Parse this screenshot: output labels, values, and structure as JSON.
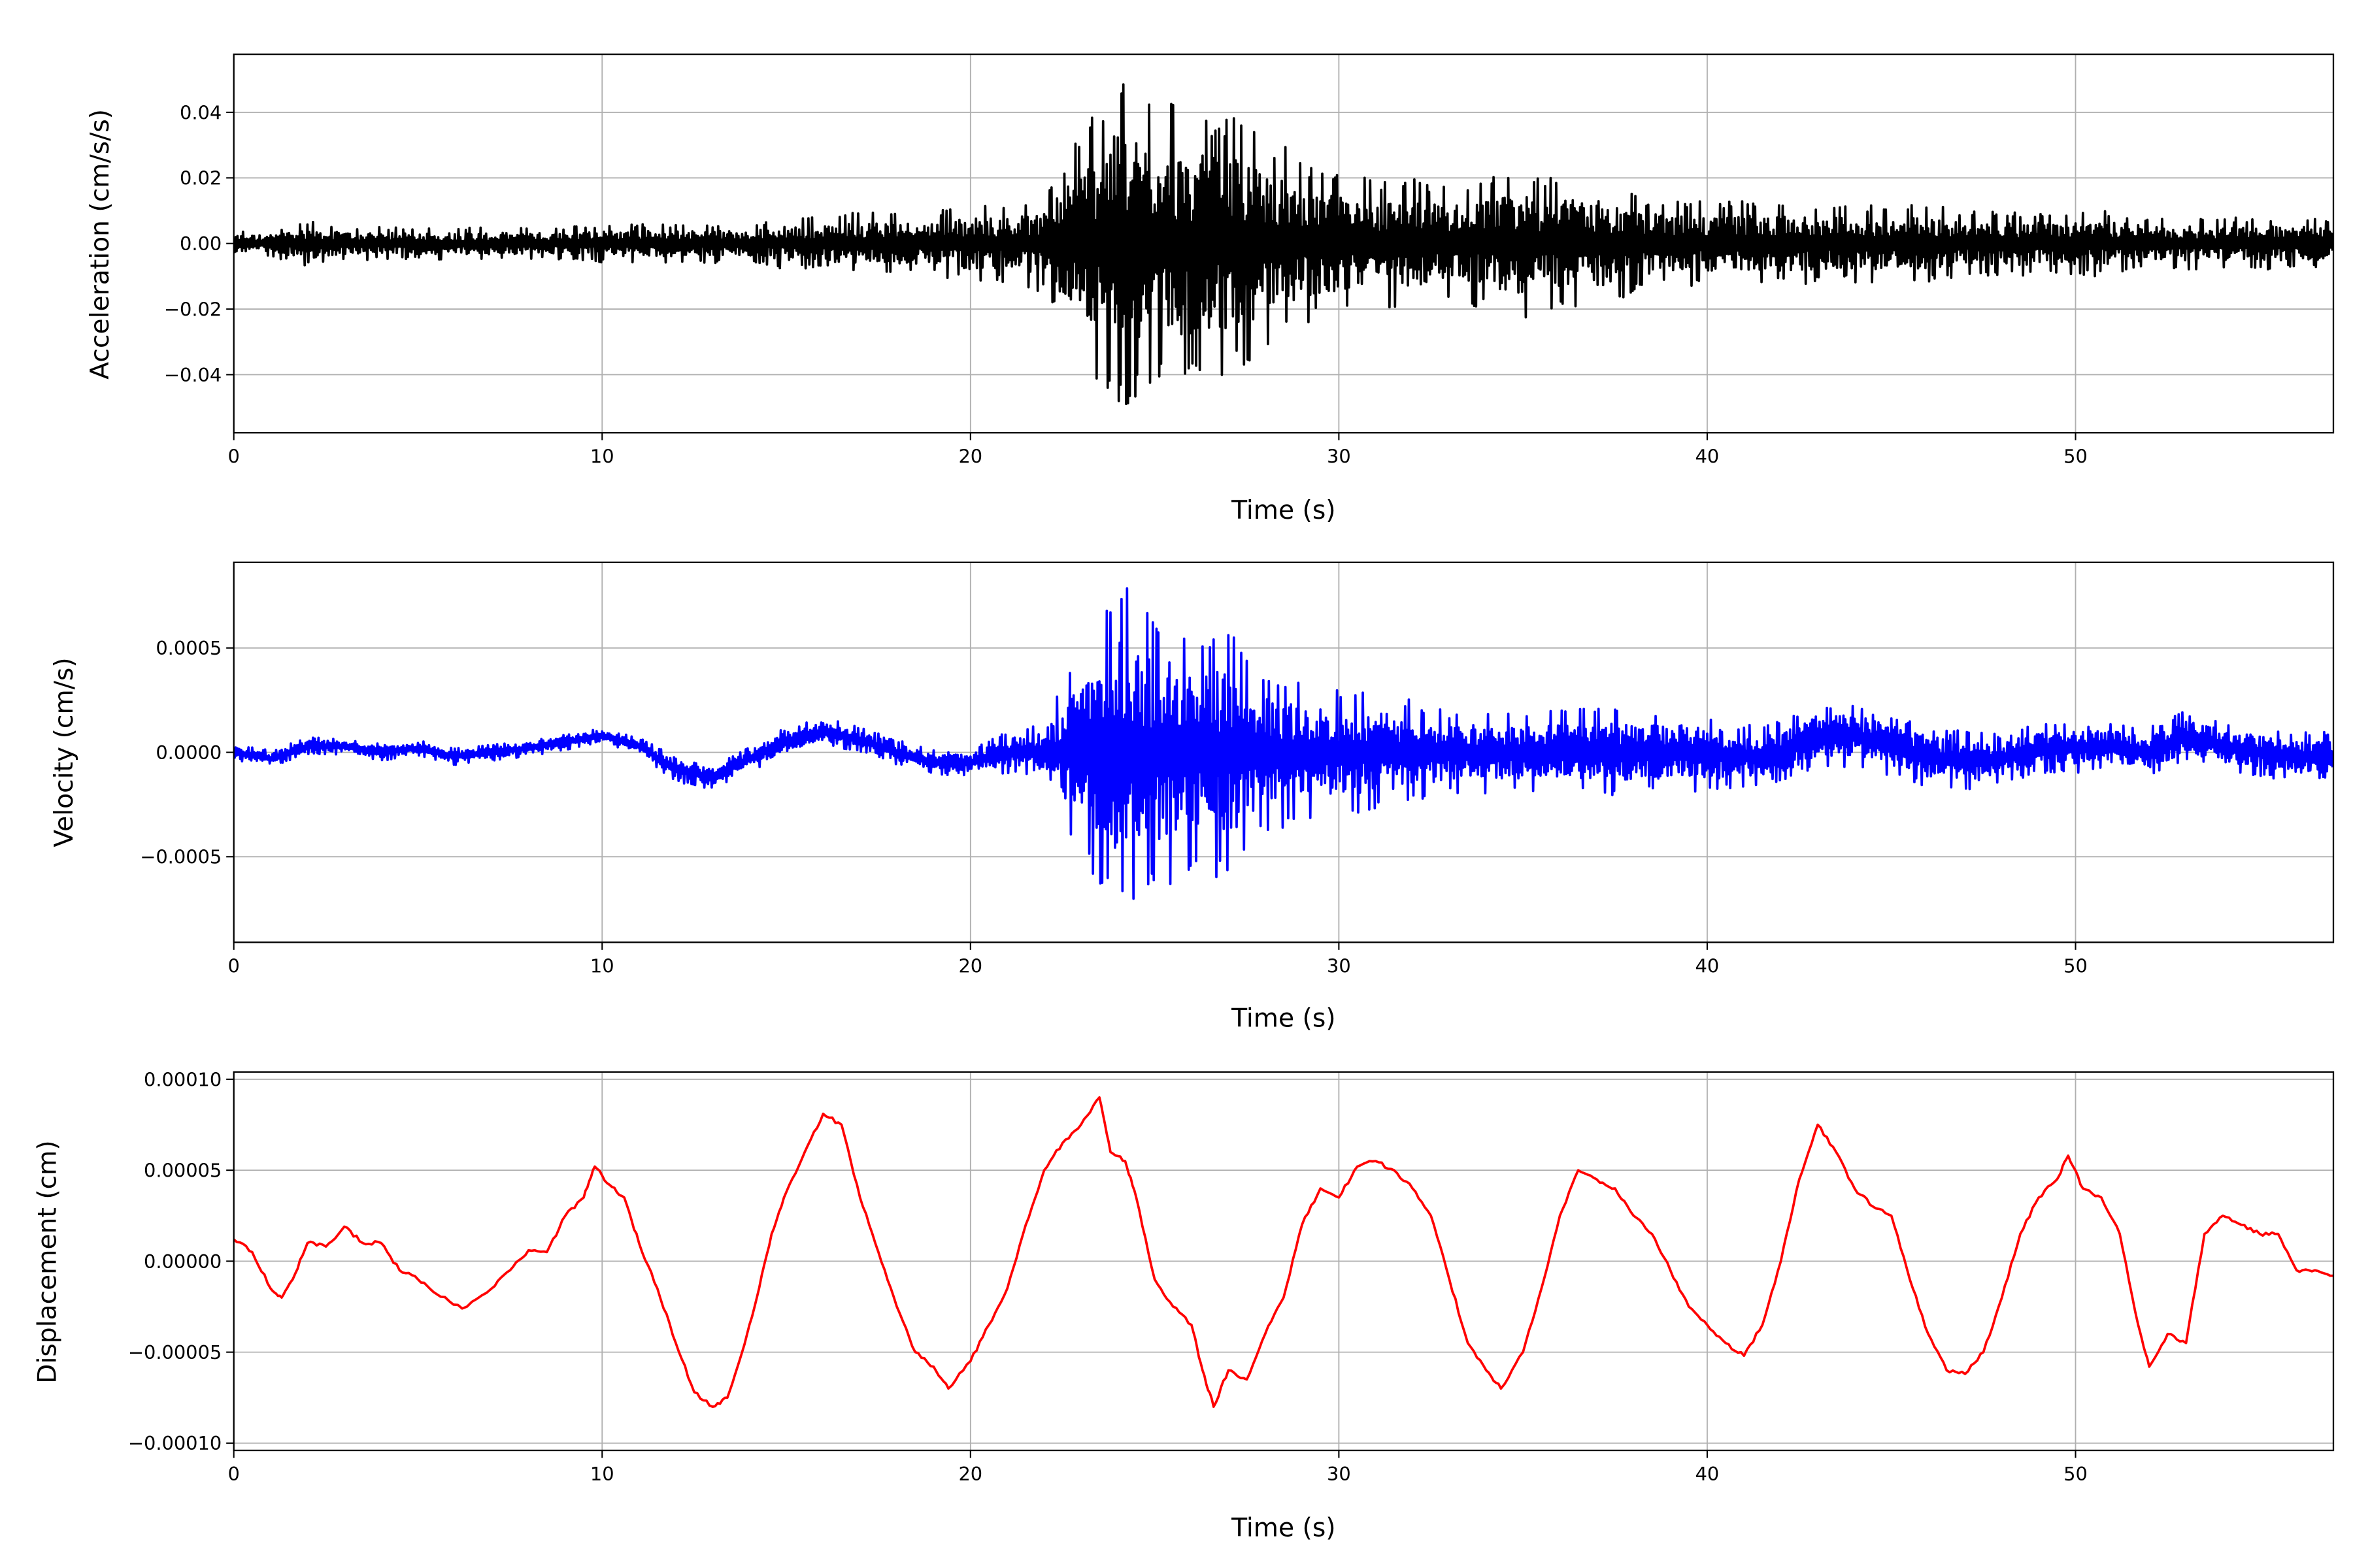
{
  "chart_data": [
    {
      "type": "line",
      "xlabel": "Time (s)",
      "ylabel": "Acceleration (cm/s/s)",
      "xlim": [
        0,
        57
      ],
      "ylim": [
        -0.0577,
        0.0577
      ],
      "xticks": [
        0,
        10,
        20,
        30,
        40,
        50
      ],
      "xtick_labels": [
        "0",
        "10",
        "20",
        "30",
        "40",
        "50"
      ],
      "yticks": [
        0.04,
        0.02,
        0.0,
        -0.02,
        -0.04
      ],
      "ytick_labels": [
        "0.04",
        "0.02",
        "0.00",
        "−0.02",
        "−0.04"
      ],
      "grid": true,
      "color": "#000000",
      "envelope": {
        "description_units": "peak absolute amplitude per 1 s bin starting at t (cm/s/s)",
        "t": [
          0,
          1,
          2,
          3,
          4,
          5,
          6,
          7,
          8,
          9,
          10,
          11,
          12,
          13,
          14,
          15,
          16,
          17,
          18,
          19,
          20,
          21,
          22,
          23,
          24,
          25,
          26,
          27,
          28,
          29,
          30,
          31,
          32,
          33,
          34,
          35,
          36,
          37,
          38,
          39,
          40,
          41,
          42,
          43,
          44,
          45,
          46,
          47,
          48,
          49,
          50,
          51,
          52,
          53,
          54,
          55,
          56
        ],
        "mean": [
          0,
          0,
          0,
          0,
          0,
          0,
          0,
          0,
          0,
          0,
          0,
          0,
          0,
          0,
          0,
          0,
          0,
          0,
          0,
          0,
          0,
          0,
          0,
          0,
          0,
          0,
          0,
          0,
          0,
          0,
          0,
          0,
          0,
          0,
          0,
          0,
          0,
          0,
          0,
          0,
          0,
          0,
          0,
          0,
          0,
          0,
          0,
          0,
          0,
          0,
          0,
          0,
          0,
          0,
          0,
          0,
          0
        ],
        "amplitude": [
          0.004,
          0.004,
          0.007,
          0.005,
          0.005,
          0.005,
          0.005,
          0.005,
          0.005,
          0.005,
          0.006,
          0.006,
          0.006,
          0.006,
          0.006,
          0.008,
          0.008,
          0.01,
          0.01,
          0.01,
          0.012,
          0.012,
          0.015,
          0.035,
          0.052,
          0.045,
          0.042,
          0.04,
          0.035,
          0.025,
          0.022,
          0.02,
          0.02,
          0.018,
          0.02,
          0.024,
          0.02,
          0.021,
          0.015,
          0.013,
          0.013,
          0.013,
          0.013,
          0.012,
          0.012,
          0.012,
          0.012,
          0.01,
          0.01,
          0.01,
          0.01,
          0.01,
          0.008,
          0.008,
          0.008,
          0.008,
          0.008
        ]
      }
    },
    {
      "type": "line",
      "xlabel": "Time (s)",
      "ylabel": "Velocity (cm/s)",
      "xlim": [
        0,
        57
      ],
      "ylim": [
        -0.00091,
        0.00091
      ],
      "xticks": [
        0,
        10,
        20,
        30,
        40,
        50
      ],
      "xtick_labels": [
        "0",
        "10",
        "20",
        "30",
        "40",
        "50"
      ],
      "yticks": [
        0.0005,
        0.0,
        -0.0005
      ],
      "ytick_labels": [
        "0.0005",
        "0.0000",
        "−0.0005"
      ],
      "grid": true,
      "color": "#0000ff",
      "envelope": {
        "description_units": "mean level and peak amplitude per 1 s bin starting at t (cm/s)",
        "t": [
          0,
          1,
          2,
          3,
          4,
          5,
          6,
          7,
          8,
          9,
          10,
          11,
          12,
          13,
          14,
          15,
          16,
          17,
          18,
          19,
          20,
          21,
          22,
          23,
          24,
          25,
          26,
          27,
          28,
          29,
          30,
          31,
          32,
          33,
          34,
          35,
          36,
          37,
          38,
          39,
          40,
          41,
          42,
          43,
          44,
          45,
          46,
          47,
          48,
          49,
          50,
          51,
          52,
          53,
          54,
          55,
          56
        ],
        "mean": [
          0,
          -3e-05,
          3e-05,
          3e-05,
          0,
          2e-05,
          -2e-05,
          0,
          2e-05,
          5e-05,
          8e-05,
          3e-05,
          -8e-05,
          -0.00012,
          -3e-05,
          5e-05,
          0.0001,
          6e-05,
          0,
          -5e-05,
          -5e-05,
          0,
          0,
          0,
          0,
          0,
          0,
          0,
          0,
          0,
          0,
          0,
          0,
          0,
          0,
          0,
          0,
          0,
          0,
          0,
          0,
          -2e-05,
          0,
          8e-05,
          8e-05,
          3e-05,
          -2e-05,
          -5e-05,
          -3e-05,
          2e-05,
          2e-05,
          3e-05,
          0,
          8e-05,
          3e-05,
          0,
          -2e-05
        ],
        "amplitude": [
          4e-05,
          4e-05,
          4e-05,
          4e-05,
          4e-05,
          4e-05,
          4e-05,
          4e-05,
          4e-05,
          4e-05,
          4e-05,
          4e-05,
          6e-05,
          6e-05,
          6e-05,
          7e-05,
          7e-05,
          6e-05,
          6e-05,
          6e-05,
          6e-05,
          0.0001,
          0.00015,
          0.0005,
          0.00082,
          0.0007,
          0.00062,
          0.0006,
          0.0004,
          0.00035,
          0.0003,
          0.0003,
          0.00025,
          0.0002,
          0.0002,
          0.0002,
          0.0002,
          0.00022,
          0.0002,
          0.0002,
          0.0002,
          0.00015,
          0.00015,
          0.00015,
          0.00015,
          0.00015,
          0.00015,
          0.00015,
          0.00012,
          0.00012,
          0.00012,
          0.00012,
          0.00012,
          0.00012,
          0.00012,
          0.00012,
          0.00012
        ]
      }
    },
    {
      "type": "line",
      "xlabel": "Time (s)",
      "ylabel": "Displacement (cm)",
      "xlim": [
        0,
        57
      ],
      "ylim": [
        -0.000104,
        0.000104
      ],
      "xticks": [
        0,
        10,
        20,
        30,
        40,
        50
      ],
      "xtick_labels": [
        "0",
        "10",
        "20",
        "30",
        "40",
        "50"
      ],
      "yticks": [
        0.0001,
        5e-05,
        0.0,
        -5e-05,
        -0.0001
      ],
      "ytick_labels": [
        "0.00010",
        "0.00005",
        "0.00000",
        "−0.00005",
        "−0.00010"
      ],
      "grid": true,
      "color": "#ff0000",
      "x": [
        0,
        0.5,
        1.0,
        1.3,
        1.6,
        2.0,
        2.5,
        3.0,
        3.5,
        4.0,
        4.5,
        5.0,
        5.5,
        6.2,
        7.0,
        7.5,
        8.0,
        8.5,
        9.0,
        9.5,
        9.8,
        10.2,
        10.6,
        11.0,
        11.5,
        12.0,
        12.5,
        13.0,
        13.4,
        13.8,
        14.2,
        14.6,
        15.0,
        15.5,
        16.0,
        16.5,
        17.0,
        17.5,
        18.0,
        18.5,
        19.0,
        19.4,
        20.0,
        20.5,
        21.0,
        21.5,
        22.0,
        22.5,
        23.0,
        23.5,
        23.8,
        24.2,
        24.5,
        25.0,
        25.5,
        26.0,
        26.3,
        26.6,
        27.0,
        27.5,
        28.0,
        28.5,
        29.0,
        29.5,
        30.0,
        30.5,
        31.0,
        31.5,
        32.0,
        32.5,
        33.0,
        33.5,
        34.0,
        34.4,
        35.0,
        35.5,
        36.0,
        36.5,
        37.0,
        37.5,
        38.0,
        38.5,
        39.0,
        39.5,
        40.0,
        40.5,
        41.0,
        41.5,
        42.0,
        42.5,
        43.0,
        43.5,
        44.0,
        44.5,
        45.0,
        45.5,
        46.0,
        46.5,
        47.0,
        47.5,
        48.0,
        48.5,
        49.0,
        49.5,
        49.8,
        50.2,
        50.7,
        51.2,
        51.7,
        52.0,
        52.5,
        53.0,
        53.5,
        54.0,
        54.5,
        55.0,
        55.5,
        56.0,
        56.5,
        57.0
      ],
      "y": [
        1.2e-05,
        5e-06,
        -1.5e-05,
        -2e-05,
        -1e-05,
        1e-05,
        8e-06,
        1.9e-05,
        1e-05,
        1e-05,
        -5e-06,
        -1e-05,
        -1.8e-05,
        -2.6e-05,
        -1.5e-05,
        -5e-06,
        6e-06,
        5e-06,
        2.5e-05,
        3.5e-05,
        5.2e-05,
        4.2e-05,
        3.5e-05,
        1e-05,
        -1.5e-05,
        -4.5e-05,
        -7.2e-05,
        -8e-05,
        -7.5e-05,
        -5e-05,
        -2e-05,
        1.5e-05,
        3.8e-05,
        6e-05,
        8.1e-05,
        7.5e-05,
        3.5e-05,
        5e-06,
        -2.5e-05,
        -5e-05,
        -5.8e-05,
        -7e-05,
        -5.5e-05,
        -3.5e-05,
        -1.5e-05,
        2e-05,
        5e-05,
        6.5e-05,
        7.5e-05,
        9e-05,
        6e-05,
        5.5e-05,
        3.5e-05,
        -1e-05,
        -2.5e-05,
        -3.5e-05,
        -6e-05,
        -8e-05,
        -6e-05,
        -6.5e-05,
        -4e-05,
        -2e-05,
        2e-05,
        4e-05,
        3.5e-05,
        5.2e-05,
        5.5e-05,
        5e-05,
        4e-05,
        2.5e-05,
        -1e-05,
        -4.5e-05,
        -6e-05,
        -7e-05,
        -5e-05,
        -1.5e-05,
        2.5e-05,
        5e-05,
        4.5e-05,
        4e-05,
        2.5e-05,
        1.5e-05,
        -5e-06,
        -2.5e-05,
        -3.5e-05,
        -4.5e-05,
        -5.2e-05,
        -3.5e-05,
        0,
        4.5e-05,
        7.5e-05,
        6e-05,
        4e-05,
        3e-05,
        2.5e-05,
        -1e-05,
        -4e-05,
        -6e-05,
        -6.2e-05,
        -5e-05,
        -2e-05,
        1.5e-05,
        3.5e-05,
        4.5e-05,
        5.8e-05,
        4e-05,
        3.5e-05,
        1.5e-05,
        -3.5e-05,
        -5.8e-05,
        -4e-05,
        -4.5e-05,
        1.5e-05,
        2.5e-05,
        2e-05,
        1.5e-05,
        1.5e-05,
        -5e-06,
        -5e-06,
        -8e-06
      ]
    }
  ]
}
